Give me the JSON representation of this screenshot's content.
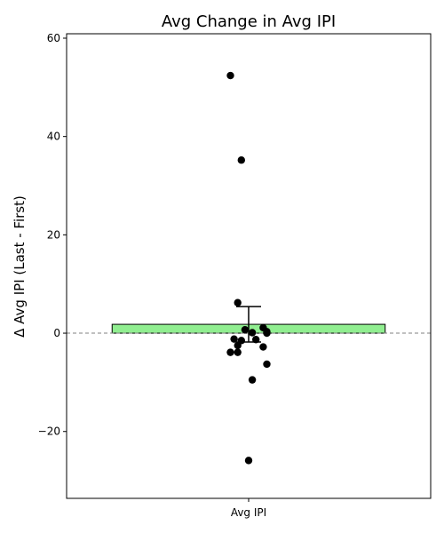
{
  "chart_data": {
    "type": "bar",
    "title": "Avg Change in Avg IPI",
    "xlabel": "",
    "ylabel": "Δ Avg IPI (Last - First)",
    "categories": [
      "Avg IPI"
    ],
    "bar": {
      "value": 1.8,
      "error": 3.6,
      "color": "#90ee90"
    },
    "points": [
      {
        "x": -0.05,
        "y": 52.4
      },
      {
        "x": -0.02,
        "y": 35.2
      },
      {
        "x": -0.03,
        "y": 6.2
      },
      {
        "x": -0.01,
        "y": 0.7
      },
      {
        "x": 0.01,
        "y": 0.1
      },
      {
        "x": 0.04,
        "y": 1.1
      },
      {
        "x": 0.05,
        "y": 0.3
      },
      {
        "x": 0.05,
        "y": 0.0
      },
      {
        "x": -0.04,
        "y": -1.2
      },
      {
        "x": -0.02,
        "y": -1.5
      },
      {
        "x": -0.03,
        "y": -2.5
      },
      {
        "x": 0.02,
        "y": -1.3
      },
      {
        "x": 0.04,
        "y": -2.8
      },
      {
        "x": -0.05,
        "y": -3.9
      },
      {
        "x": -0.03,
        "y": -3.9
      },
      {
        "x": 0.05,
        "y": -6.3
      },
      {
        "x": 0.01,
        "y": -9.5
      },
      {
        "x": 0.0,
        "y": -25.9
      }
    ],
    "point_color": "#000000",
    "reference_line": {
      "y": 0,
      "style": "dashed",
      "color": "#808080"
    },
    "ylim": [
      -33.6,
      60.9
    ],
    "xlim": [
      -0.5,
      0.5
    ],
    "yticks": [
      -20,
      0,
      20,
      40,
      60
    ],
    "grid": false
  }
}
